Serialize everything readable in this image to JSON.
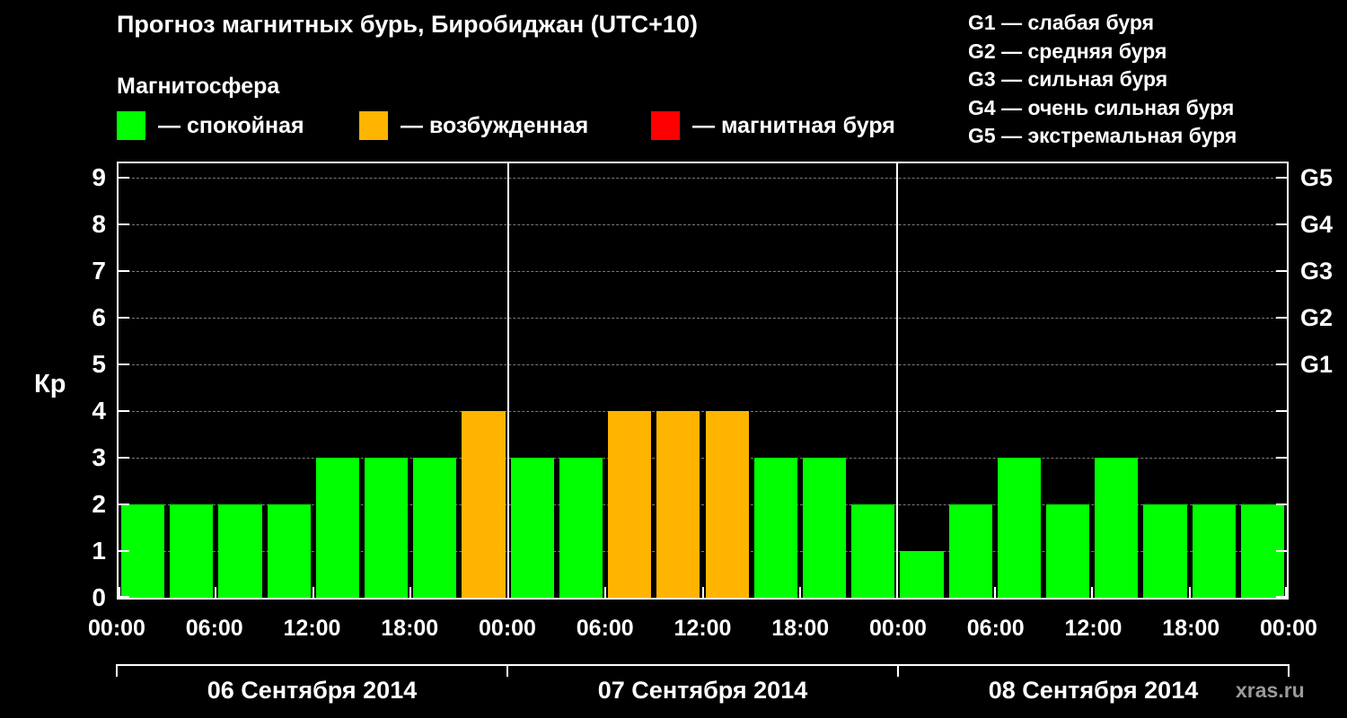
{
  "title": "Прогноз магнитных бурь, Биробиджан (UTC+10)",
  "subtitle": "Магнитосфера",
  "y_axis_title": "Кр",
  "watermark": "xras.ru",
  "legend": [
    {
      "name": "quiet",
      "label": "— спокойная",
      "color": "#00ff00"
    },
    {
      "name": "excited",
      "label": "— возбужденная",
      "color": "#ffb400"
    },
    {
      "name": "storm",
      "label": "— магнитная буря",
      "color": "#ff0000"
    }
  ],
  "storm_scale": [
    "G1 — слабая буря",
    "G2 — средняя буря",
    "G3 — сильная буря",
    "G4 — очень сильная буря",
    "G5 — экстремальная буря"
  ],
  "chart_data": {
    "type": "bar",
    "title": "Прогноз магнитных бурь, Биробиджан (UTC+10)",
    "xlabel": "",
    "ylabel": "Кр",
    "ylim": [
      0,
      9.4
    ],
    "y_ticks": [
      0,
      1,
      2,
      3,
      4,
      5,
      6,
      7,
      8,
      9
    ],
    "right_axis_ticks": [
      {
        "label": "G1",
        "kp": 5
      },
      {
        "label": "G2",
        "kp": 6
      },
      {
        "label": "G3",
        "kp": 7
      },
      {
        "label": "G4",
        "kp": 8
      },
      {
        "label": "G5",
        "kp": 9
      }
    ],
    "x_tick_labels": [
      "00:00",
      "06:00",
      "12:00",
      "18:00",
      "00:00",
      "06:00",
      "12:00",
      "18:00",
      "00:00",
      "06:00",
      "12:00",
      "18:00",
      "00:00"
    ],
    "bar_interval_hours": 3,
    "days": [
      {
        "date": "06 Сентября 2014",
        "kp_values": [
          2,
          2,
          2,
          2,
          3,
          3,
          3,
          4
        ]
      },
      {
        "date": "07 Сентября 2014",
        "kp_values": [
          3,
          3,
          4,
          4,
          4,
          3,
          3,
          2
        ]
      },
      {
        "date": "08 Сентября 2014",
        "kp_values": [
          1,
          2,
          3,
          2,
          3,
          2,
          2,
          2
        ]
      }
    ],
    "color_rules": {
      "quiet_below": 4,
      "excited_below": 5,
      "quiet_color": "#00ff00",
      "excited_color": "#ffb400",
      "storm_color": "#ff0000"
    },
    "grid": "dashed horizontal lines at each Kp level 1-9",
    "legend_position": "top"
  }
}
